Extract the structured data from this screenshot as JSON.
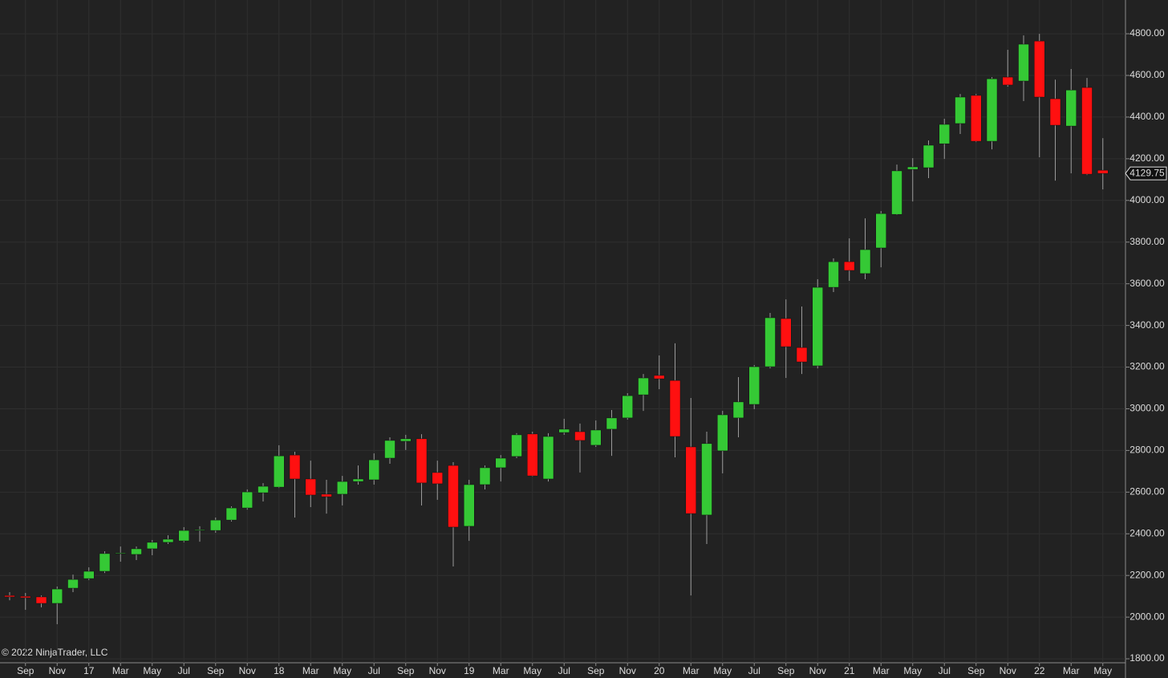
{
  "chart_data": {
    "type": "candlestick",
    "watermark": "© 2022 NinjaTrader, LLC",
    "categories": [
      null,
      "Sep",
      null,
      "Nov",
      null,
      "17",
      null,
      "Mar",
      null,
      "May",
      null,
      "Jul",
      null,
      "Sep",
      null,
      "Nov",
      null,
      "18",
      null,
      "Mar",
      null,
      "May",
      null,
      "Jul",
      null,
      "Sep",
      null,
      "Nov",
      null,
      "19",
      null,
      "Mar",
      null,
      "May",
      null,
      "Jul",
      null,
      "Sep",
      null,
      "Nov",
      null,
      "20",
      null,
      "Mar",
      null,
      "May",
      null,
      "Jul",
      null,
      "Sep",
      null,
      "Nov",
      null,
      "21",
      null,
      "Mar",
      null,
      "May",
      null,
      "Jul",
      null,
      "Sep",
      null,
      "Nov",
      null,
      "22",
      null,
      "Mar",
      null,
      "May"
    ],
    "open": [
      2104,
      2100,
      2097,
      2066,
      2139,
      2185,
      2220,
      2305,
      2301,
      2328,
      2359,
      2366,
      2420,
      2416,
      2466,
      2524,
      2597,
      2624,
      2778,
      2663,
      2590,
      2590,
      2651,
      2659,
      2763,
      2844,
      2856,
      2694,
      2728,
      2436,
      2636,
      2717,
      2771,
      2879,
      2663,
      2886,
      2890,
      2825,
      2902,
      2956,
      3067,
      3160,
      3136,
      2817,
      2490,
      2798,
      2956,
      3021,
      3202,
      3433,
      3294,
      3206,
      3583,
      3706,
      3649,
      3772,
      3933,
      4149,
      4157,
      4272,
      4369,
      4504,
      4284,
      4592,
      4573,
      4765,
      4488,
      4357,
      4542,
      4145
    ],
    "high": [
      2120,
      2116,
      2104,
      2147,
      2204,
      2239,
      2316,
      2339,
      2339,
      2370,
      2393,
      2432,
      2436,
      2478,
      2532,
      2613,
      2643,
      2825,
      2794,
      2751,
      2659,
      2678,
      2728,
      2786,
      2863,
      2875,
      2878,
      2751,
      2744,
      2659,
      2728,
      2778,
      2883,
      2890,
      2883,
      2952,
      2929,
      2944,
      2994,
      3075,
      3167,
      3256,
      3314,
      3052,
      2890,
      2990,
      3152,
      3210,
      3460,
      3525,
      3491,
      3622,
      3722,
      3818,
      3914,
      3949,
      4172,
      4203,
      4288,
      4392,
      4511,
      4511,
      4592,
      4723,
      4792,
      4800,
      4580,
      4631,
      4588,
      4299
    ],
    "low": [
      2081,
      2035,
      2047,
      1966,
      2120,
      2178,
      2212,
      2266,
      2274,
      2297,
      2351,
      2359,
      2362,
      2405,
      2459,
      2516,
      2555,
      2620,
      2478,
      2528,
      2497,
      2536,
      2636,
      2636,
      2736,
      2802,
      2536,
      2563,
      2243,
      2366,
      2613,
      2651,
      2763,
      2675,
      2651,
      2875,
      2694,
      2817,
      2774,
      2948,
      2990,
      3094,
      2767,
      2104,
      2351,
      2690,
      2863,
      2998,
      3194,
      3148,
      3167,
      3194,
      3560,
      3614,
      3622,
      3679,
      3930,
      3995,
      4107,
      4199,
      4319,
      4280,
      4245,
      4546,
      4477,
      4207,
      4095,
      4130,
      4122,
      4053
    ],
    "close": [
      2097,
      2093,
      2066,
      2135,
      2181,
      2220,
      2305,
      2308,
      2328,
      2359,
      2374,
      2416,
      2420,
      2466,
      2524,
      2601,
      2628,
      2774,
      2663,
      2586,
      2578,
      2651,
      2663,
      2755,
      2848,
      2856,
      2644,
      2640,
      2432,
      2636,
      2717,
      2763,
      2875,
      2678,
      2867,
      2902,
      2848,
      2898,
      2956,
      3063,
      3148,
      3144,
      2867,
      2497,
      2833,
      2971,
      3033,
      3202,
      3437,
      3298,
      3225,
      3583,
      3706,
      3664,
      3764,
      3937,
      4142,
      4161,
      4265,
      4365,
      4496,
      4284,
      4584,
      4554,
      4750,
      4496,
      4361,
      4530,
      4126,
      4129.75
    ],
    "last_price": 4129.75,
    "up_color": "#35c935",
    "down_color": "#ff1010",
    "wick_color": "#9a9a9a",
    "ylim": [
      1781,
      4962
    ],
    "yticks": [
      {
        "value": 1800,
        "label": "1800.00"
      },
      {
        "value": 2000,
        "label": "2000.00"
      },
      {
        "value": 2200,
        "label": "2200.00"
      },
      {
        "value": 2400,
        "label": "2400.00"
      },
      {
        "value": 2600,
        "label": "2600.00"
      },
      {
        "value": 2800,
        "label": "2800.00"
      },
      {
        "value": 3000,
        "label": "3000.00"
      },
      {
        "value": 3200,
        "label": "3200.00"
      },
      {
        "value": 3400,
        "label": "3400.00"
      },
      {
        "value": 3600,
        "label": "3600.00"
      },
      {
        "value": 3800,
        "label": "3800.00"
      },
      {
        "value": 4000,
        "label": "4000.00"
      },
      {
        "value": 4200,
        "label": "4200.00"
      },
      {
        "value": 4400,
        "label": "4400.00"
      },
      {
        "value": 4600,
        "label": "4600.00"
      },
      {
        "value": 4800,
        "label": "4800.00"
      }
    ],
    "grid": true
  }
}
